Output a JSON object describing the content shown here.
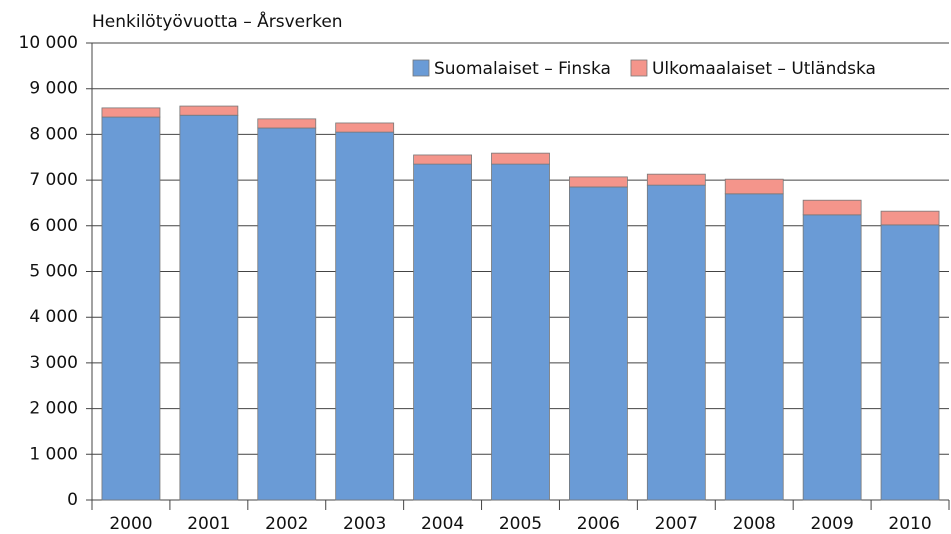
{
  "chart_data": {
    "type": "stacked_bar",
    "title": "Henkilötyövuotta – Årsverken",
    "categories": [
      "2000",
      "2001",
      "2002",
      "2003",
      "2004",
      "2005",
      "2006",
      "2007",
      "2008",
      "2009",
      "2010"
    ],
    "series": [
      {
        "name": "Suomalaiset – Finska",
        "color": "#6a9bd6",
        "values": [
          8380,
          8420,
          8140,
          8050,
          7350,
          7350,
          6850,
          6890,
          6700,
          6240,
          6020
        ]
      },
      {
        "name": "Ulkomaalaiset – Utländska",
        "color": "#f4958b",
        "values": [
          200,
          200,
          200,
          200,
          200,
          240,
          220,
          240,
          320,
          320,
          300
        ]
      }
    ],
    "ylim": [
      0,
      10000
    ],
    "yticks": [
      0,
      {
        "value": 1000,
        "label": "1 000"
      },
      {
        "value": 2000,
        "label": "2 000"
      },
      {
        "value": 3000,
        "label": "3 000"
      },
      {
        "value": 4000,
        "label": "4 000"
      },
      {
        "value": 5000,
        "label": "5 000"
      },
      {
        "value": 6000,
        "label": "6 000"
      },
      {
        "value": 7000,
        "label": "7 000"
      },
      {
        "value": 8000,
        "label": "8 000"
      },
      {
        "value": 9000,
        "label": "9 000"
      },
      {
        "value": 10000,
        "label": "10 000"
      }
    ],
    "grid": true,
    "legend": "top-right"
  }
}
